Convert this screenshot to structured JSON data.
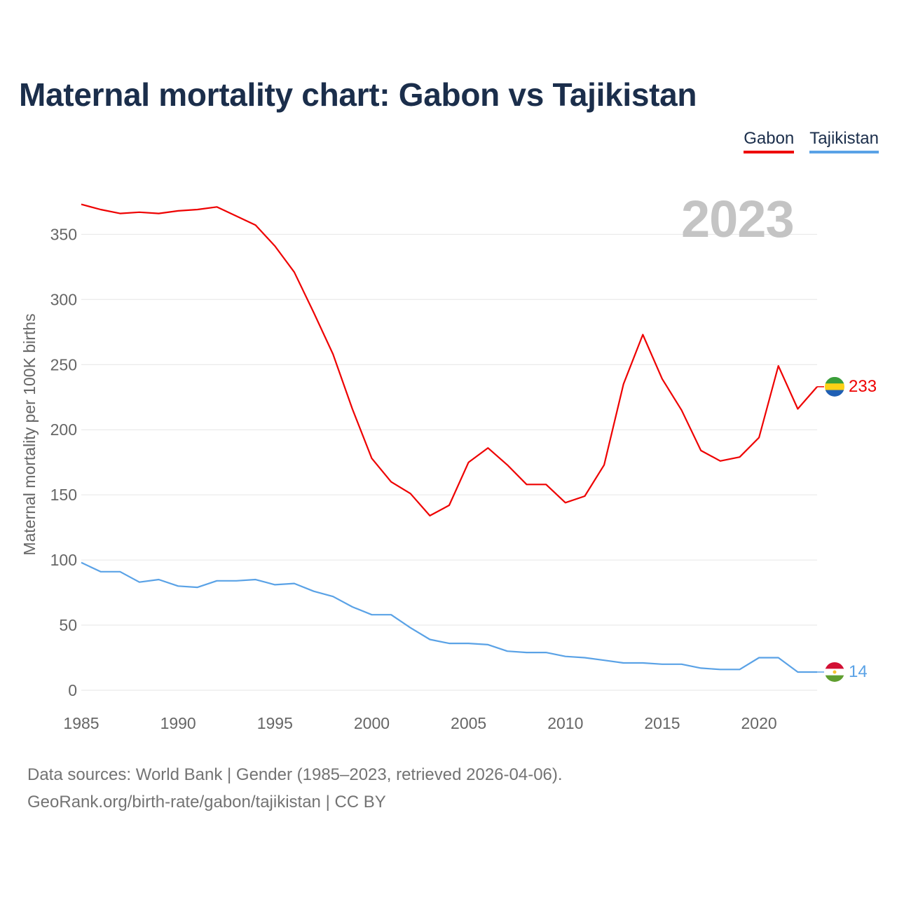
{
  "title": "Maternal mortality chart: Gabon vs Tajikistan",
  "year_watermark": "2023",
  "legend": [
    {
      "label": "Gabon",
      "color": "#ee0000"
    },
    {
      "label": "Tajikistan",
      "color": "#5aa2e6"
    }
  ],
  "footer": {
    "line1": "Data sources: World Bank | Gender (1985–2023, retrieved 2026-04-06).",
    "line2": "GeoRank.org/birth-rate/gabon/tajikistan | CC BY"
  },
  "chart_data": {
    "type": "line",
    "title": "Maternal mortality chart: Gabon vs Tajikistan",
    "xlabel": "",
    "ylabel": "Maternal mortality per 100K births",
    "xlim": [
      1985,
      2023
    ],
    "ylim": [
      0,
      375
    ],
    "x_ticks": [
      1985,
      1990,
      1995,
      2000,
      2005,
      2010,
      2015,
      2020
    ],
    "y_ticks": [
      0,
      50,
      100,
      150,
      200,
      250,
      300,
      350
    ],
    "grid": true,
    "x": [
      1985,
      1986,
      1987,
      1988,
      1989,
      1990,
      1991,
      1992,
      1993,
      1994,
      1995,
      1996,
      1997,
      1998,
      1999,
      2000,
      2001,
      2002,
      2003,
      2004,
      2005,
      2006,
      2007,
      2008,
      2009,
      2010,
      2011,
      2012,
      2013,
      2014,
      2015,
      2016,
      2017,
      2018,
      2019,
      2020,
      2021,
      2022,
      2023
    ],
    "series": [
      {
        "name": "Gabon",
        "color": "#ee0000",
        "end_label": "233",
        "values": [
          373,
          369,
          366,
          367,
          366,
          368,
          369,
          371,
          364,
          357,
          341,
          321,
          290,
          258,
          216,
          178,
          160,
          151,
          134,
          142,
          175,
          186,
          173,
          158,
          158,
          144,
          149,
          173,
          235,
          273,
          239,
          215,
          184,
          176,
          179,
          194,
          249,
          216,
          233
        ]
      },
      {
        "name": "Tajikistan",
        "color": "#5aa2e6",
        "end_label": "14",
        "values": [
          98,
          91,
          91,
          83,
          85,
          80,
          79,
          84,
          84,
          85,
          81,
          82,
          76,
          72,
          64,
          58,
          58,
          48,
          39,
          36,
          36,
          35,
          30,
          29,
          29,
          26,
          25,
          23,
          21,
          21,
          20,
          20,
          17,
          16,
          16,
          25,
          25,
          14,
          14
        ]
      }
    ]
  }
}
